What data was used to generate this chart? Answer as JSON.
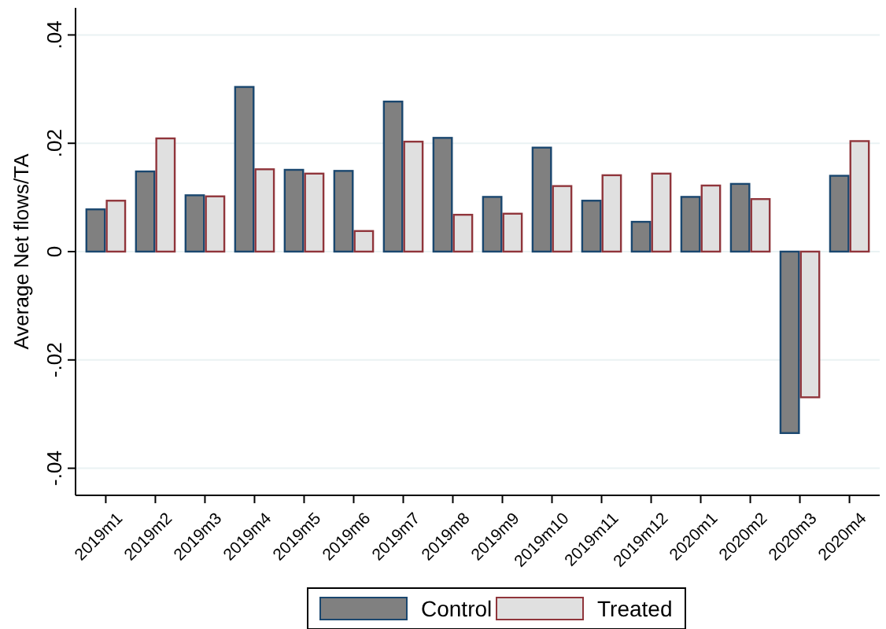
{
  "chart_data": {
    "type": "bar",
    "ylabel": "Average Net flows/TA",
    "categories": [
      "2019m1",
      "2019m2",
      "2019m3",
      "2019m4",
      "2019m5",
      "2019m6",
      "2019m7",
      "2019m8",
      "2019m9",
      "2019m10",
      "2019m11",
      "2019m12",
      "2020m1",
      "2020m2",
      "2020m3",
      "2020m4"
    ],
    "series": [
      {
        "name": "Control",
        "color": "#808080",
        "values": [
          0.0078,
          0.0148,
          0.0104,
          0.0304,
          0.0151,
          0.0149,
          0.0277,
          0.021,
          0.0101,
          0.0192,
          0.0094,
          0.0055,
          0.0101,
          0.0125,
          -0.0335,
          0.014
        ]
      },
      {
        "name": "Treated",
        "color": "#e0e0e0",
        "values": [
          0.0094,
          0.0209,
          0.0102,
          0.0152,
          0.0144,
          0.0038,
          0.0203,
          0.0068,
          0.007,
          0.0121,
          0.0141,
          0.0144,
          0.0122,
          0.0097,
          -0.0269,
          0.0204
        ]
      }
    ],
    "ylim": [
      -0.045,
      0.045
    ],
    "yticks": [
      {
        "value": -0.04,
        "label": "-.04"
      },
      {
        "value": -0.02,
        "label": "-.02"
      },
      0,
      {
        "value": 0.02,
        "label": ".02"
      },
      {
        "value": 0.04,
        "label": ".04"
      }
    ],
    "grid": "y",
    "legend": "bottom"
  }
}
